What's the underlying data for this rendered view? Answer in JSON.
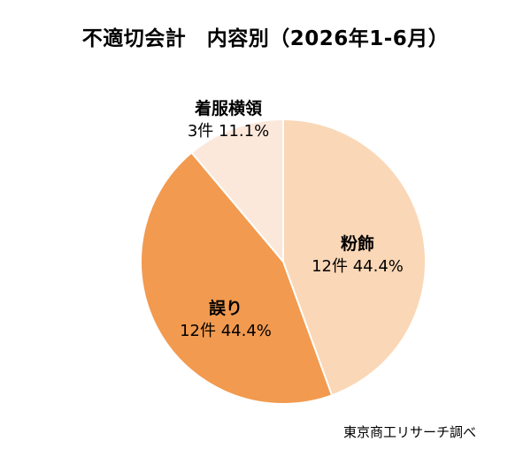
{
  "chart_data": {
    "type": "pie",
    "title": "不適切会計　内容別（2026年1-6月）",
    "slices": [
      {
        "label": "粉飾",
        "count": 12,
        "count_text": "12件",
        "percent": 44.4,
        "percent_text": "44.4%",
        "color": "#FAD7B6"
      },
      {
        "label": "誤り",
        "count": 12,
        "count_text": "12件",
        "percent": 44.4,
        "percent_text": "44.4%",
        "color": "#F29A4F"
      },
      {
        "label": "着服横領",
        "count": 3,
        "count_text": "3件",
        "percent": 11.1,
        "percent_text": "11.1%",
        "color": "#FBE8DA"
      }
    ],
    "legend": "none",
    "source": "東京商工リサーチ調べ"
  }
}
